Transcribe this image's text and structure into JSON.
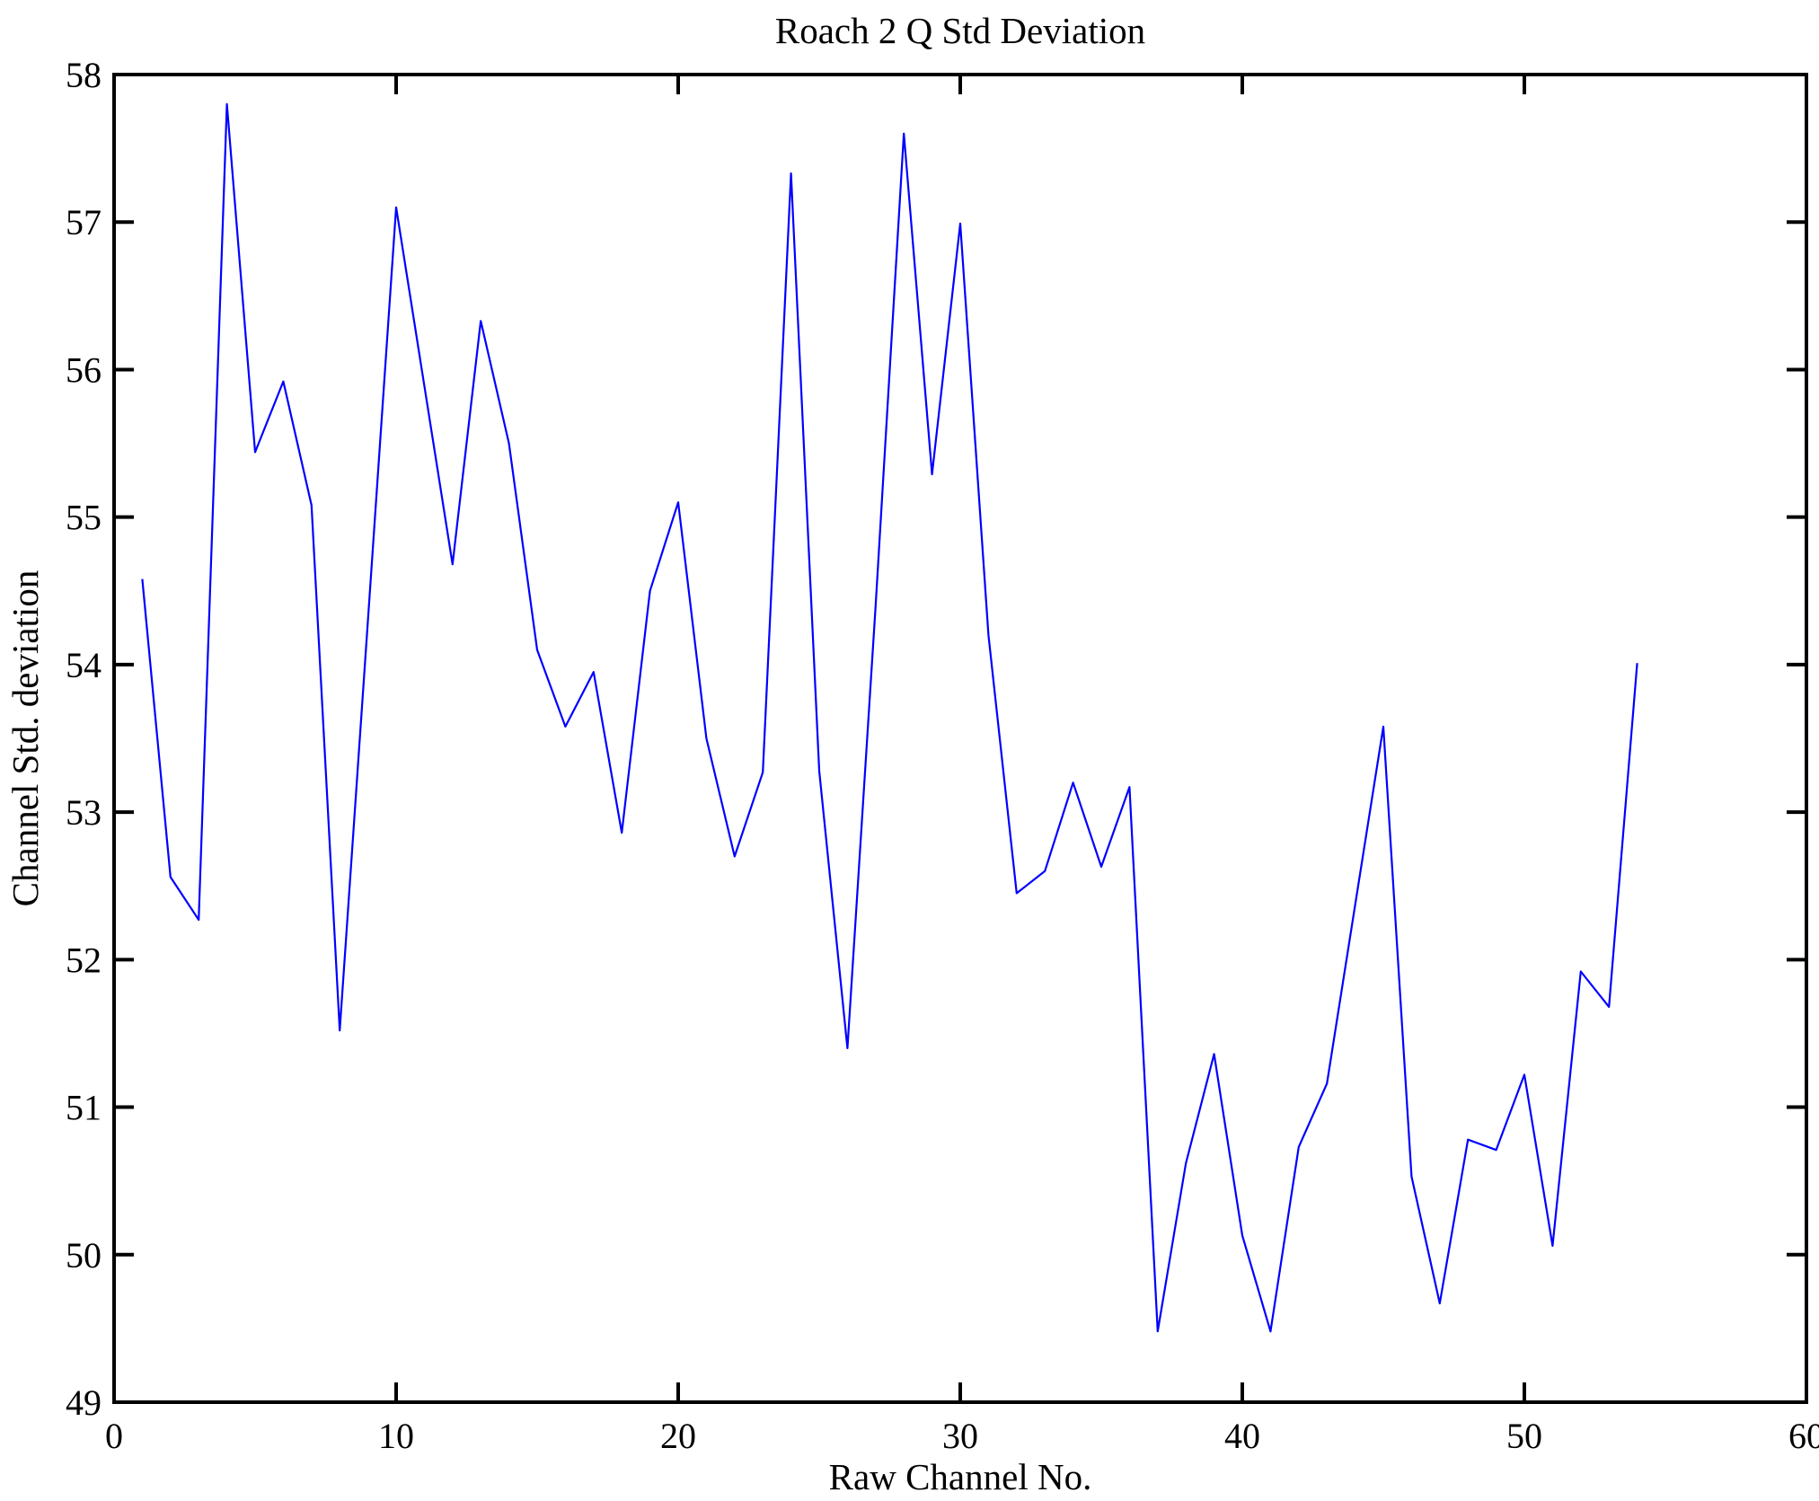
{
  "chart_data": {
    "type": "line",
    "title": "Roach 2 Q Std Deviation",
    "xlabel": "Raw Channel No.",
    "ylabel": "Channel Std. deviation",
    "xlim": [
      0,
      60
    ],
    "ylim": [
      49,
      58
    ],
    "xticks": [
      0,
      10,
      20,
      30,
      40,
      50,
      60
    ],
    "yticks": [
      49,
      50,
      51,
      52,
      53,
      54,
      55,
      56,
      57,
      58
    ],
    "grid": false,
    "legend": null,
    "line_color": "#0000FF",
    "frame_color": "#000000",
    "x": [
      1,
      2,
      3,
      4,
      5,
      6,
      7,
      8,
      9,
      10,
      11,
      12,
      13,
      14,
      15,
      16,
      17,
      18,
      19,
      20,
      21,
      22,
      23,
      24,
      25,
      26,
      27,
      28,
      29,
      30,
      31,
      32,
      33,
      34,
      35,
      36,
      37,
      38,
      39,
      40,
      41,
      42,
      43,
      44,
      45,
      46,
      47,
      48,
      49,
      50,
      51,
      52,
      53,
      54
    ],
    "values": [
      54.58,
      52.56,
      52.27,
      57.8,
      55.44,
      55.92,
      55.08,
      51.52,
      54.3,
      57.1,
      55.89,
      54.68,
      56.33,
      55.5,
      54.1,
      53.58,
      53.95,
      52.86,
      54.5,
      55.1,
      53.5,
      52.7,
      53.27,
      57.33,
      53.28,
      51.4,
      54.4,
      57.6,
      55.29,
      56.99,
      54.2,
      52.45,
      52.6,
      53.2,
      52.63,
      53.17,
      49.48,
      50.62,
      51.36,
      50.13,
      49.48,
      50.73,
      51.16,
      52.37,
      53.58,
      50.53,
      49.67,
      50.78,
      50.71,
      51.22,
      50.06,
      51.92,
      51.68,
      54.01
    ]
  },
  "layout_note": "single line plot, black box frame, inward ticks on all four sides"
}
